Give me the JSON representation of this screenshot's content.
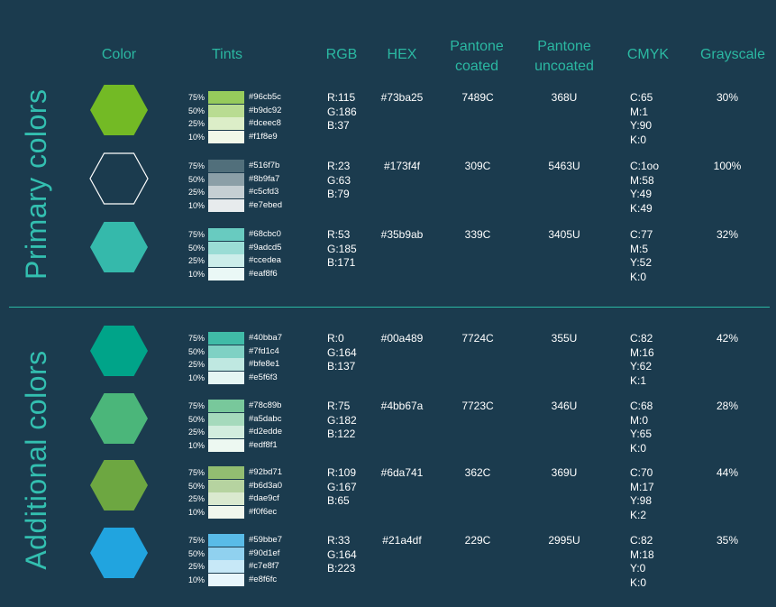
{
  "headers": {
    "color": "Color",
    "tints": "Tints",
    "rgb": "RGB",
    "hex": "HEX",
    "pantone_coated": "Pantone\ncoated",
    "pantone_uncoated": "Pantone\nuncoated",
    "cmyk": "CMYK",
    "grayscale": "Grayscale"
  },
  "sections": {
    "primary": "Primary colors",
    "additional": "Additional colors"
  },
  "rows": [
    {
      "hex_color": "#73ba25",
      "outline": false,
      "tints": [
        {
          "pct": "75%",
          "hex": "#96cb5c"
        },
        {
          "pct": "50%",
          "hex": "#b9dc92"
        },
        {
          "pct": "25%",
          "hex": "#dceec8"
        },
        {
          "pct": "10%",
          "hex": "#f1f8e9"
        }
      ],
      "rgb": "R:115\nG:186\nB:37",
      "hex": "#73ba25",
      "coated": "7489C",
      "uncoated": "368U",
      "cmyk": "C:65\nM:1\nY:90\nK:0",
      "gray": "30%"
    },
    {
      "hex_color": "#173f4f",
      "outline": true,
      "tints": [
        {
          "pct": "75%",
          "hex": "#516f7b"
        },
        {
          "pct": "50%",
          "hex": "#8b9fa7"
        },
        {
          "pct": "25%",
          "hex": "#c5cfd3"
        },
        {
          "pct": "10%",
          "hex": "#e7ebed"
        }
      ],
      "rgb": "R:23\nG:63\nB:79",
      "hex": "#173f4f",
      "coated": "309C",
      "uncoated": "5463U",
      "cmyk": "C:1oo\nM:58\nY:49\nK:49",
      "gray": "100%"
    },
    {
      "hex_color": "#35b9ab",
      "outline": false,
      "tints": [
        {
          "pct": "75%",
          "hex": "#68cbc0"
        },
        {
          "pct": "50%",
          "hex": "#9adcd5"
        },
        {
          "pct": "25%",
          "hex": "#ccedea"
        },
        {
          "pct": "10%",
          "hex": "#eaf8f6"
        }
      ],
      "rgb": "R:53\nG:185\nB:171",
      "hex": "#35b9ab",
      "coated": "339C",
      "uncoated": "3405U",
      "cmyk": "C:77\nM:5\nY:52\nK:0",
      "gray": "32%"
    },
    {
      "hex_color": "#00a489",
      "outline": false,
      "tints": [
        {
          "pct": "75%",
          "hex": "#40bba7"
        },
        {
          "pct": "50%",
          "hex": "#7fd1c4"
        },
        {
          "pct": "25%",
          "hex": "#bfe8e1"
        },
        {
          "pct": "10%",
          "hex": "#e5f6f3"
        }
      ],
      "rgb": "R:0\nG:164\nB:137",
      "hex": "#00a489",
      "coated": "7724C",
      "uncoated": "355U",
      "cmyk": "C:82\nM:16\nY:62\nK:1",
      "gray": "42%"
    },
    {
      "hex_color": "#4bb67a",
      "outline": false,
      "tints": [
        {
          "pct": "75%",
          "hex": "#78c89b"
        },
        {
          "pct": "50%",
          "hex": "#a5dabc"
        },
        {
          "pct": "25%",
          "hex": "#d2edde"
        },
        {
          "pct": "10%",
          "hex": "#edf8f1"
        }
      ],
      "rgb": "R:75\nG:182\nB:122",
      "hex": "#4bb67a",
      "coated": "7723C",
      "uncoated": "346U",
      "cmyk": "C:68\nM:0\nY:65\nK:0",
      "gray": "28%"
    },
    {
      "hex_color": "#6da741",
      "outline": false,
      "tints": [
        {
          "pct": "75%",
          "hex": "#92bd71"
        },
        {
          "pct": "50%",
          "hex": "#b6d3a0"
        },
        {
          "pct": "25%",
          "hex": "#dae9cf"
        },
        {
          "pct": "10%",
          "hex": "#f0f6ec"
        }
      ],
      "rgb": "R:109\nG:167\nB:65",
      "hex": "#6da741",
      "coated": "362C",
      "uncoated": "369U",
      "cmyk": "C:70\nM:17\nY:98\nK:2",
      "gray": "44%"
    },
    {
      "hex_color": "#21a4df",
      "outline": false,
      "tints": [
        {
          "pct": "75%",
          "hex": "#59bbe7"
        },
        {
          "pct": "50%",
          "hex": "#90d1ef"
        },
        {
          "pct": "25%",
          "hex": "#c7e8f7"
        },
        {
          "pct": "10%",
          "hex": "#e8f6fc"
        }
      ],
      "rgb": "R:33\nG:164\nB:223",
      "hex": "#21a4df",
      "coated": "229C",
      "uncoated": "2995U",
      "cmyk": "C:82\nM:18\nY:0\nK:0",
      "gray": "35%"
    }
  ]
}
